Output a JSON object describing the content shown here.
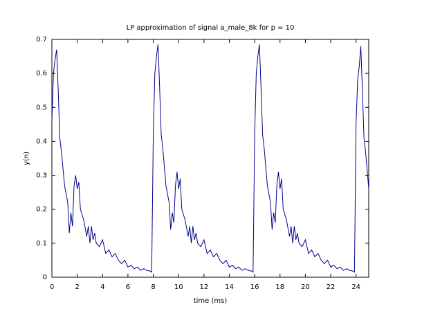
{
  "chart_data": {
    "type": "line",
    "title": "LP approximation of signal a_male_8k for p = 10",
    "x_label": "time (ms)",
    "y_label": "y(n)",
    "color": "#00008b",
    "xlim": [
      0,
      25
    ],
    "xticks": [
      0,
      2,
      4,
      6,
      8,
      10,
      12,
      14,
      16,
      18,
      20,
      22,
      24
    ],
    "ylim": [
      0,
      0.7
    ],
    "yticks": [
      0,
      0.1,
      0.2,
      0.3,
      0.4,
      0.5,
      0.6,
      0.7
    ],
    "x": [
      0,
      0.125,
      0.25,
      0.375,
      0.5,
      0.625,
      0.75,
      1.0,
      1.25,
      1.375,
      1.5,
      1.625,
      1.75,
      1.875,
      2.0,
      2.125,
      2.25,
      2.5,
      2.75,
      2.875,
      3.0,
      3.125,
      3.25,
      3.375,
      3.5,
      3.75,
      4.0,
      4.25,
      4.5,
      4.75,
      5.0,
      5.25,
      5.5,
      5.75,
      6.0,
      6.25,
      6.5,
      6.75,
      7.0,
      7.25,
      7.5,
      7.75,
      7.875,
      8,
      8.125,
      8.25,
      8.375,
      8.5,
      8.625,
      8.75,
      9,
      9.25,
      9.375,
      9.5,
      9.625,
      9.75,
      9.875,
      10,
      10.125,
      10.25,
      10.5,
      10.75,
      10.875,
      11,
      11.125,
      11.25,
      11.375,
      11.5,
      11.75,
      12,
      12.25,
      12.5,
      12.75,
      13,
      13.25,
      13.5,
      13.75,
      14,
      14.25,
      14.5,
      14.75,
      15,
      15.25,
      15.5,
      15.75,
      15.875,
      16,
      16.125,
      16.25,
      16.375,
      16.5,
      16.625,
      16.75,
      17,
      17.25,
      17.375,
      17.5,
      17.625,
      17.75,
      17.875,
      18,
      18.125,
      18.25,
      18.5,
      18.75,
      18.875,
      19,
      19.125,
      19.25,
      19.375,
      19.5,
      19.75,
      20,
      20.25,
      20.5,
      20.75,
      21,
      21.25,
      21.5,
      21.75,
      22,
      22.25,
      22.5,
      22.75,
      23,
      23.25,
      23.5,
      23.75,
      23.875,
      24,
      24.125,
      24.25,
      24.375,
      24.5,
      24.625,
      24.75,
      25.0
    ],
    "values": [
      0.46,
      0.6,
      0.64,
      0.67,
      0.55,
      0.41,
      0.37,
      0.27,
      0.22,
      0.13,
      0.19,
      0.15,
      0.27,
      0.3,
      0.26,
      0.28,
      0.2,
      0.17,
      0.12,
      0.15,
      0.1,
      0.15,
      0.11,
      0.13,
      0.1,
      0.09,
      0.11,
      0.07,
      0.08,
      0.06,
      0.07,
      0.05,
      0.04,
      0.05,
      0.03,
      0.035,
      0.025,
      0.03,
      0.02,
      0.025,
      0.02,
      0.018,
      0.015,
      0.42,
      0.6,
      0.65,
      0.685,
      0.56,
      0.42,
      0.38,
      0.27,
      0.22,
      0.14,
      0.19,
      0.16,
      0.27,
      0.31,
      0.26,
      0.29,
      0.2,
      0.17,
      0.12,
      0.15,
      0.1,
      0.15,
      0.11,
      0.13,
      0.1,
      0.09,
      0.11,
      0.07,
      0.08,
      0.06,
      0.07,
      0.05,
      0.04,
      0.05,
      0.03,
      0.035,
      0.025,
      0.03,
      0.02,
      0.025,
      0.02,
      0.018,
      0.015,
      0.42,
      0.6,
      0.65,
      0.685,
      0.56,
      0.42,
      0.38,
      0.27,
      0.22,
      0.14,
      0.19,
      0.16,
      0.27,
      0.31,
      0.26,
      0.29,
      0.2,
      0.17,
      0.12,
      0.15,
      0.1,
      0.15,
      0.11,
      0.13,
      0.1,
      0.09,
      0.11,
      0.07,
      0.08,
      0.06,
      0.07,
      0.05,
      0.04,
      0.05,
      0.03,
      0.035,
      0.025,
      0.03,
      0.02,
      0.025,
      0.02,
      0.018,
      0.015,
      0.45,
      0.58,
      0.62,
      0.68,
      0.55,
      0.41,
      0.37,
      0.26
    ]
  }
}
